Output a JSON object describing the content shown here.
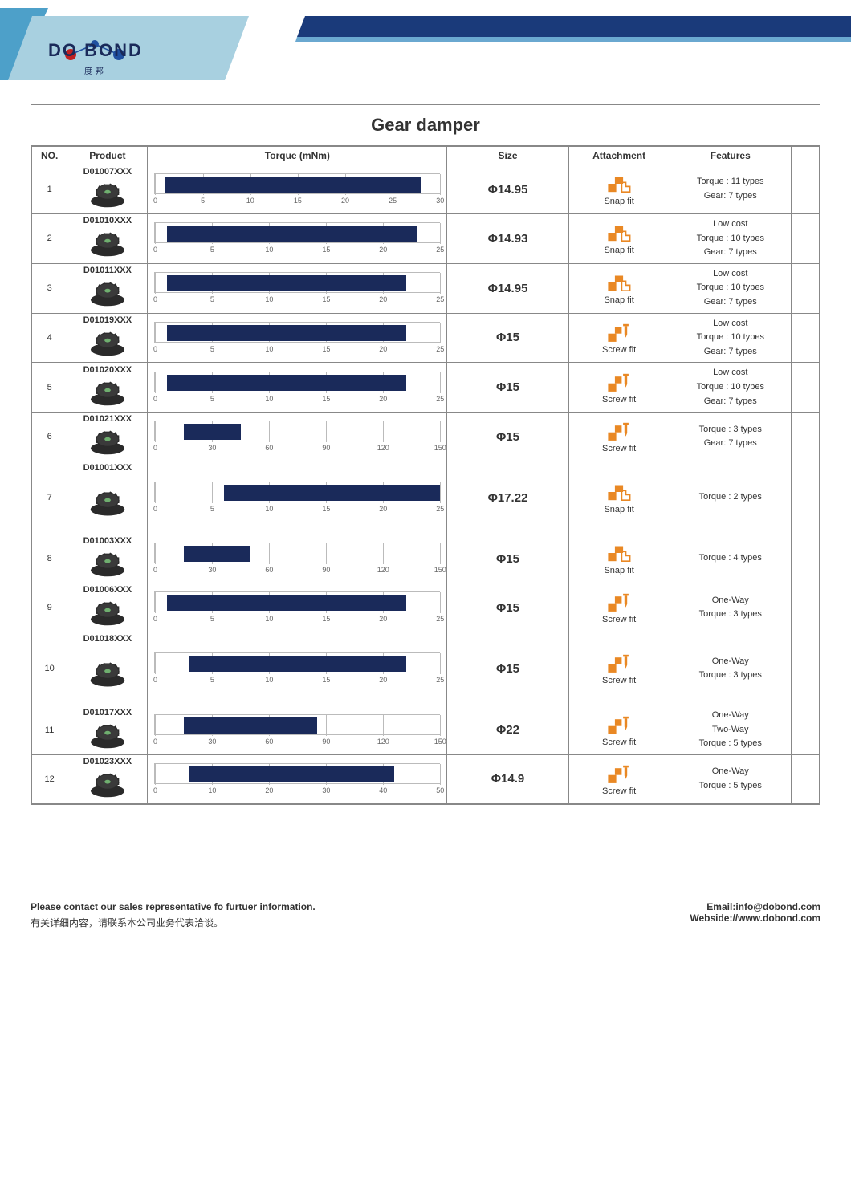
{
  "brand": {
    "name_en": "DO BOND",
    "name_cn": "度邦"
  },
  "title": "Gear damper",
  "columns": [
    "NO.",
    "Product",
    "Torque (mNm)",
    "Size",
    "Attachment",
    "Features",
    ""
  ],
  "bar_color": "#1a2a5a",
  "rail_border": "#bbbbbb",
  "tick_label_color": "#666666",
  "icon_color": "#e98824",
  "rows": [
    {
      "no": "1",
      "product": "D01007XXX",
      "size": "Φ14.95",
      "attachment": "Snap fit",
      "features": [
        "Torque : 11 types",
        "Gear: 7 types"
      ],
      "torque": {
        "min": 0,
        "max": 30,
        "step": 5,
        "bar_start": 1,
        "bar_end": 28
      }
    },
    {
      "no": "2",
      "product": "D01010XXX",
      "size": "Φ14.93",
      "attachment": "Snap fit",
      "features": [
        "Low cost",
        "Torque : 10 types",
        "Gear: 7 types"
      ],
      "torque": {
        "min": 0,
        "max": 25,
        "step": 5,
        "bar_start": 1,
        "bar_end": 23
      }
    },
    {
      "no": "3",
      "product": "D01011XXX",
      "size": "Φ14.95",
      "attachment": "Snap fit",
      "features": [
        "Low cost",
        "Torque : 10 types",
        "Gear: 7 types"
      ],
      "torque": {
        "min": 0,
        "max": 25,
        "step": 5,
        "bar_start": 1,
        "bar_end": 22
      }
    },
    {
      "no": "4",
      "product": "D01019XXX",
      "size": "Φ15",
      "attachment": "Screw fit",
      "features": [
        "Low cost",
        "Torque : 10 types",
        "Gear: 7 types"
      ],
      "torque": {
        "min": 0,
        "max": 25,
        "step": 5,
        "bar_start": 1,
        "bar_end": 22
      }
    },
    {
      "no": "5",
      "product": "D01020XXX",
      "size": "Φ15",
      "attachment": "Screw fit",
      "features": [
        "Low cost",
        "Torque : 10 types",
        "Gear: 7 types"
      ],
      "torque": {
        "min": 0,
        "max": 25,
        "step": 5,
        "bar_start": 1,
        "bar_end": 22
      }
    },
    {
      "no": "6",
      "product": "D01021XXX",
      "size": "Φ15",
      "attachment": "Screw fit",
      "features": [
        "Torque : 3 types",
        "Gear: 7 types"
      ],
      "torque": {
        "min": 0,
        "max": 150,
        "step": 30,
        "bar_start": 15,
        "bar_end": 45
      }
    },
    {
      "no": "7",
      "product": "D01001XXX",
      "size": "Φ17.22",
      "attachment": "Snap fit",
      "features": [
        "Torque : 2 types"
      ],
      "torque": {
        "min": 0,
        "max": 25,
        "step": 5,
        "bar_start": 6,
        "bar_end": 25
      },
      "tall": true
    },
    {
      "no": "8",
      "product": "D01003XXX",
      "size": "Φ15",
      "attachment": "Snap fit",
      "features": [
        "Torque : 4 types"
      ],
      "torque": {
        "min": 0,
        "max": 150,
        "step": 30,
        "bar_start": 15,
        "bar_end": 50
      }
    },
    {
      "no": "9",
      "product": "D01006XXX",
      "size": "Φ15",
      "attachment": "Screw fit",
      "features": [
        "One-Way",
        "Torque : 3 types"
      ],
      "torque": {
        "min": 0,
        "max": 25,
        "step": 5,
        "bar_start": 1,
        "bar_end": 22
      }
    },
    {
      "no": "10",
      "product": "D01018XXX",
      "size": "Φ15",
      "attachment": "Screw fit",
      "features": [
        "One-Way",
        "Torque : 3 types"
      ],
      "torque": {
        "min": 0,
        "max": 25,
        "step": 5,
        "bar_start": 3,
        "bar_end": 22
      },
      "tall": true
    },
    {
      "no": "11",
      "product": "D01017XXX",
      "size": "Φ22",
      "attachment": "Screw fit",
      "features": [
        "One-Way",
        "Two-Way",
        "Torque : 5 types"
      ],
      "torque": {
        "min": 0,
        "max": 150,
        "step": 30,
        "bar_start": 15,
        "bar_end": 85
      }
    },
    {
      "no": "12",
      "product": "D01023XXX",
      "size": "Φ14.9",
      "attachment": "Screw fit",
      "features": [
        "One-Way",
        "Torque : 5 types"
      ],
      "torque": {
        "min": 0,
        "max": 50,
        "step": 10,
        "bar_start": 6,
        "bar_end": 42
      }
    }
  ],
  "footer": {
    "contact_en": "Please contact our sales representative fo furtuer information.",
    "contact_cn": "有关详细内容，请联系本公司业务代表洽谈。",
    "email_label": "Email:",
    "email_value": "info@dobond.com",
    "website_label": "Webside:",
    "website_value": "//www.dobond.com"
  }
}
